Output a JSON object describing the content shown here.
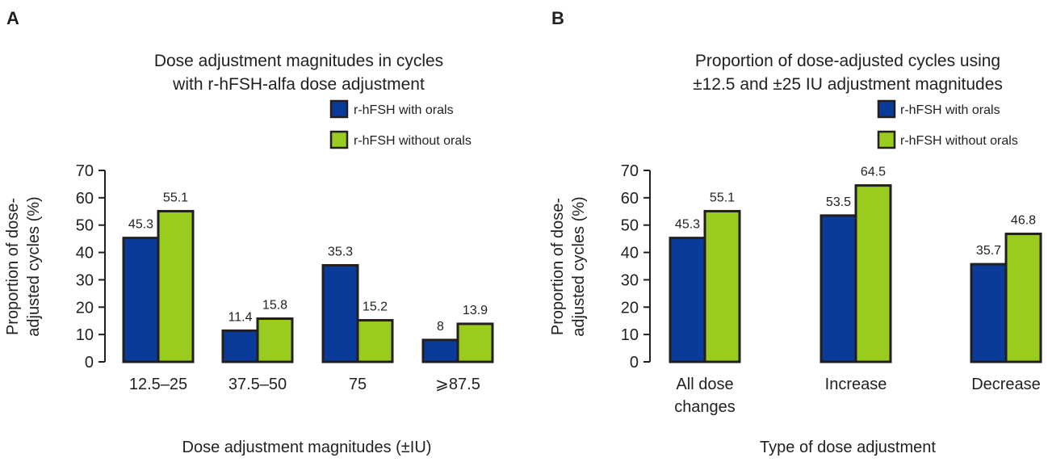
{
  "colors": {
    "with_orals": "#0a3a9a",
    "without_orals": "#99cc1f",
    "outline": "#231f20"
  },
  "chart_data": [
    {
      "type": "bar",
      "panel_label": "A",
      "title": [
        "Dose adjustment magnitudes in cycles",
        "with r-hFSH-alfa dose adjustment"
      ],
      "categories": [
        [
          "12.5–25"
        ],
        [
          "37.5–50"
        ],
        [
          "75"
        ],
        [
          "⩾87.5"
        ]
      ],
      "series": [
        {
          "name": "r-hFSH with orals",
          "values": [
            45.3,
            11.4,
            35.3,
            8
          ],
          "labels": [
            "45.3",
            "11.4",
            "35.3",
            "8"
          ]
        },
        {
          "name": "r-hFSH without orals",
          "values": [
            55.1,
            15.8,
            15.2,
            13.9
          ],
          "labels": [
            "55.1",
            "15.8",
            "15.2",
            "13.9"
          ]
        }
      ],
      "ylabel": [
        "Proportion of dose-",
        "adjusted cycles (%)"
      ],
      "xlabel": "Dose adjustment magnitudes (±IU)",
      "ylim": [
        0,
        70
      ],
      "yticks": [
        0,
        10,
        20,
        30,
        40,
        50,
        60,
        70
      ],
      "grid": false,
      "legend_position": "top-right"
    },
    {
      "type": "bar",
      "panel_label": "B",
      "title": [
        "Proportion of dose-adjusted cycles using",
        "±12.5 and ±25 IU adjustment magnitudes"
      ],
      "categories": [
        [
          "All dose",
          "changes"
        ],
        [
          "Increase"
        ],
        [
          "Decrease"
        ]
      ],
      "series": [
        {
          "name": "r-hFSH with orals",
          "values": [
            45.3,
            53.5,
            35.7
          ],
          "labels": [
            "45.3",
            "53.5",
            "35.7"
          ]
        },
        {
          "name": "r-hFSH without orals",
          "values": [
            55.1,
            64.5,
            46.8
          ],
          "labels": [
            "55.1",
            "64.5",
            "46.8"
          ]
        }
      ],
      "ylabel": [
        "Proportion of dose-",
        "adjusted cycles (%)"
      ],
      "xlabel": "Type of dose adjustment",
      "ylim": [
        0,
        70
      ],
      "yticks": [
        0,
        10,
        20,
        30,
        40,
        50,
        60,
        70
      ],
      "grid": false,
      "legend_position": "top-right"
    }
  ]
}
